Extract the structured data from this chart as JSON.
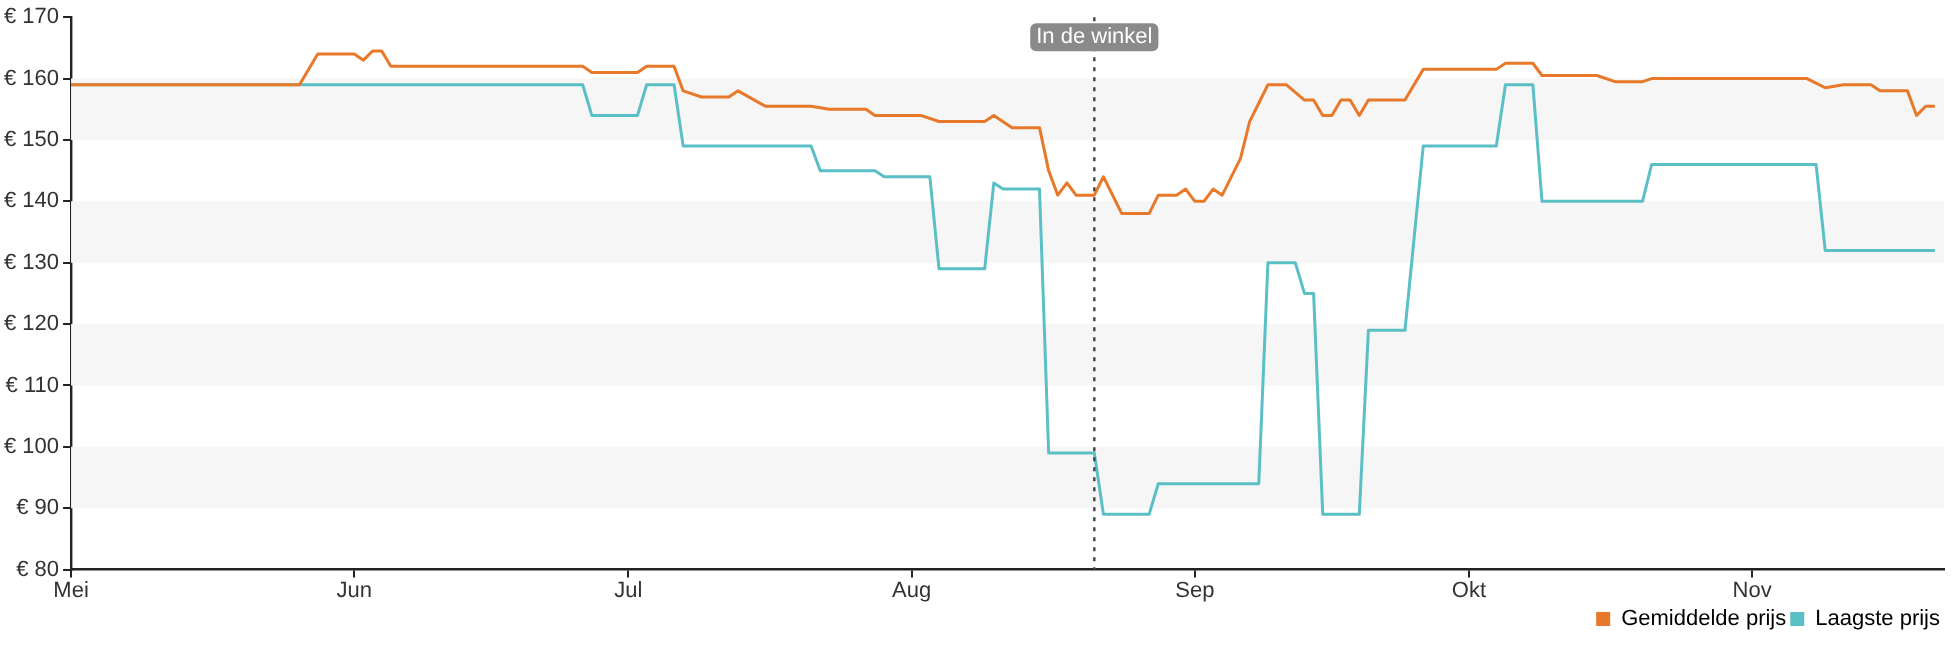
{
  "chart_data": {
    "type": "line",
    "xlim": [
      "--05-01",
      "--11-22"
    ],
    "xticks": [
      {
        "value": "--05-01",
        "label": "Mei"
      },
      {
        "value": "--06-01",
        "label": "Jun"
      },
      {
        "value": "--07-01",
        "label": "Jul"
      },
      {
        "value": "--08-01",
        "label": "Aug"
      },
      {
        "value": "--09-01",
        "label": "Sep"
      },
      {
        "value": "--10-01",
        "label": "Okt"
      },
      {
        "value": "--11-01",
        "label": "Nov"
      }
    ],
    "ylim": [
      80,
      170
    ],
    "yticks": [
      {
        "value": 80,
        "label": "€ 80"
      },
      {
        "value": 90,
        "label": "€ 90"
      },
      {
        "value": 100,
        "label": "€ 100"
      },
      {
        "value": 110,
        "label": "€ 110"
      },
      {
        "value": 120,
        "label": "€ 120"
      },
      {
        "value": 130,
        "label": "€ 130"
      },
      {
        "value": 140,
        "label": "€ 140"
      },
      {
        "value": 150,
        "label": "€ 150"
      },
      {
        "value": 160,
        "label": "€ 160"
      },
      {
        "value": 170,
        "label": "€ 170"
      }
    ],
    "legend": "bottom right",
    "marker": "none",
    "line_style": "solid",
    "ref_lines": [
      {
        "axis": "x",
        "value": "--08-21",
        "label": "In de winkel",
        "line_style": "dotted",
        "color": "#444444"
      }
    ],
    "series": [
      {
        "name": "Gemiddelde prijs",
        "color": "#e8782a",
        "x": [
          "--05-01",
          "--05-26",
          "--05-28",
          "--06-01",
          "--06-02",
          "--06-03",
          "--06-04",
          "--06-05",
          "--06-26",
          "--06-27",
          "--07-02",
          "--07-03",
          "--07-06",
          "--07-07",
          "--07-09",
          "--07-12",
          "--07-13",
          "--07-16",
          "--07-21",
          "--07-23",
          "--07-27",
          "--07-28",
          "--08-02",
          "--08-04",
          "--08-09",
          "--08-10",
          "--08-12",
          "--08-15",
          "--08-16",
          "--08-17",
          "--08-18",
          "--08-19",
          "--08-21",
          "--08-22",
          "--08-24",
          "--08-27",
          "--08-28",
          "--08-30",
          "--08-31",
          "--09-01",
          "--09-02",
          "--09-03",
          "--09-04",
          "--09-06",
          "--09-07",
          "--09-09",
          "--09-11",
          "--09-13",
          "--09-14",
          "--09-15",
          "--09-16",
          "--09-17",
          "--09-18",
          "--09-19",
          "--09-20",
          "--09-24",
          "--09-26",
          "--10-04",
          "--10-05",
          "--10-08",
          "--10-09",
          "--10-15",
          "--10-17",
          "--10-20",
          "--10-21",
          "--11-07",
          "--11-09",
          "--11-11",
          "--11-14",
          "--11-15",
          "--11-18",
          "--11-19",
          "--11-20",
          "--11-21"
        ],
        "values": [
          159,
          159,
          164,
          164,
          163,
          164.5,
          164.5,
          162,
          162,
          161,
          161,
          162,
          162,
          158,
          157,
          157,
          158,
          155.5,
          155.5,
          155,
          155,
          154,
          154,
          153,
          153,
          154,
          152,
          152,
          145,
          141,
          143,
          141,
          141,
          144,
          138,
          138,
          141,
          141,
          142,
          140,
          140,
          142,
          141,
          147,
          153,
          159,
          159,
          156.5,
          156.5,
          154,
          154,
          156.5,
          156.5,
          154,
          156.5,
          156.5,
          161.5,
          161.5,
          162.5,
          162.5,
          160.5,
          160.5,
          159.5,
          159.5,
          160,
          160,
          158.5,
          159,
          159,
          158,
          158,
          154,
          155.5,
          155.5
        ]
      },
      {
        "name": "Laagste prijs",
        "color": "#5bbfc6",
        "x": [
          "--05-01",
          "--06-26",
          "--06-27",
          "--07-02",
          "--07-03",
          "--07-06",
          "--07-07",
          "--07-21",
          "--07-22",
          "--07-28",
          "--07-29",
          "--08-03",
          "--08-04",
          "--08-09",
          "--08-10",
          "--08-11",
          "--08-15",
          "--08-16",
          "--08-21",
          "--08-22",
          "--08-27",
          "--08-28",
          "--09-08",
          "--09-09",
          "--09-12",
          "--09-13",
          "--09-14",
          "--09-15",
          "--09-19",
          "--09-20",
          "--09-24",
          "--09-26",
          "--10-04",
          "--10-05",
          "--10-08",
          "--10-09",
          "--10-20",
          "--10-21",
          "--11-08",
          "--11-09",
          "--11-21"
        ],
        "values": [
          159,
          159,
          154,
          154,
          159,
          159,
          149,
          149,
          145,
          145,
          144,
          144,
          129,
          129,
          143,
          142,
          142,
          99,
          99,
          89,
          89,
          94,
          94,
          130,
          130,
          125,
          125,
          89,
          89,
          119,
          119,
          149,
          149,
          159,
          159,
          140,
          140,
          146,
          146,
          132,
          132
        ]
      }
    ]
  }
}
